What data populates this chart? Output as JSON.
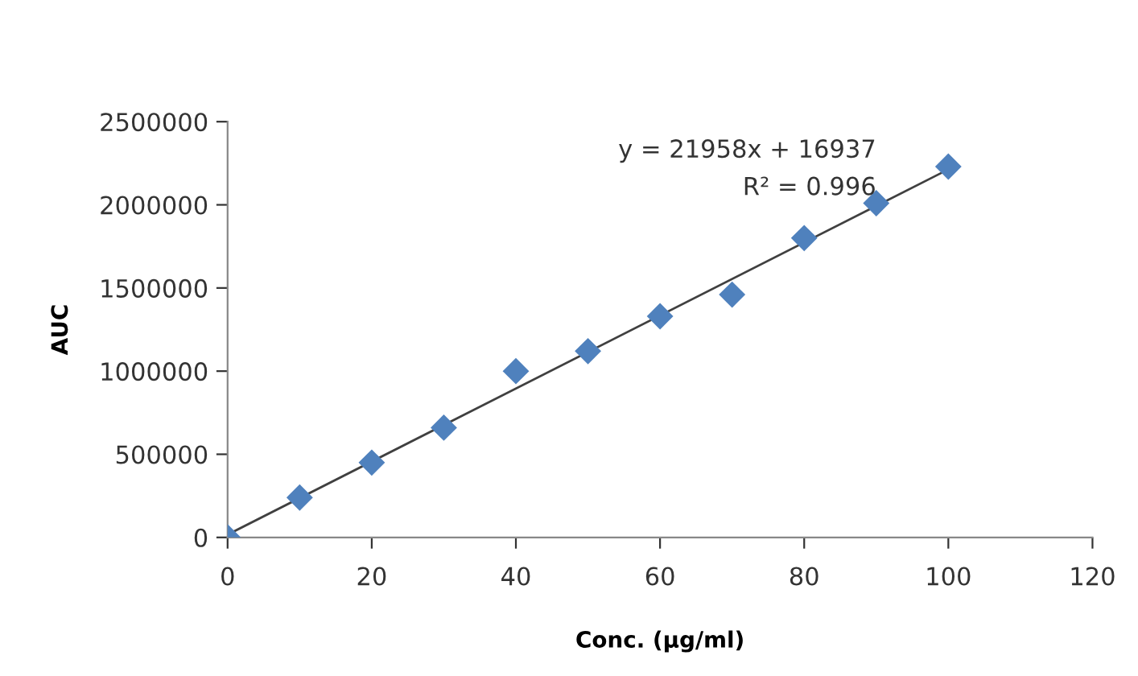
{
  "chart_data": {
    "type": "scatter",
    "xlabel": "Conc. (µg/ml)",
    "ylabel": "AUC",
    "series": [
      {
        "color": "#4f81bd",
        "marker": "diamond",
        "x": [
          0,
          10,
          20,
          30,
          40,
          50,
          60,
          70,
          80,
          90,
          100
        ],
        "values": [
          0,
          240000,
          450000,
          660000,
          1000000,
          1120000,
          1330000,
          1460000,
          1800000,
          2010000,
          2230000
        ]
      },
      {
        "type": "line",
        "color": "#404040",
        "marker": "none",
        "x": [
          0,
          100
        ],
        "values": [
          17000,
          2213000
        ]
      }
    ],
    "annotations": [
      "y = 21958x + 16937",
      "R² = 0.996"
    ],
    "xlim": [
      0,
      120
    ],
    "xticks": [
      0,
      20,
      40,
      60,
      80,
      100,
      120
    ],
    "ylim": [
      0,
      2500000
    ],
    "yticks": [
      0,
      500000,
      1000000,
      1500000,
      2000000,
      2500000
    ],
    "grid": false,
    "legend": false
  }
}
